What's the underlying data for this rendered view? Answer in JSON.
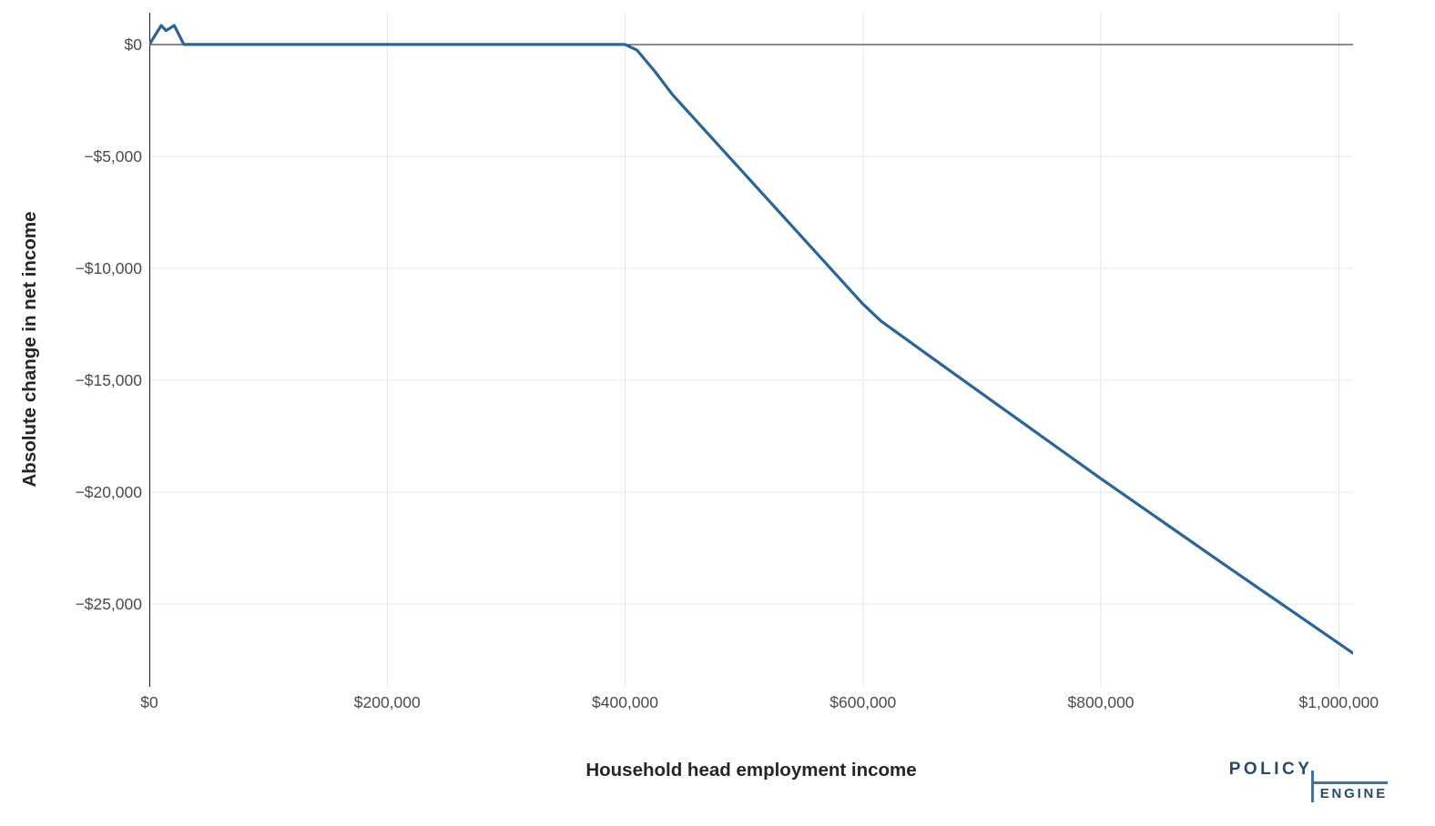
{
  "chart_data": {
    "type": "line",
    "title": "",
    "xlabel": "Household head employment income",
    "ylabel": "Absolute change in net income",
    "xlim": [
      0,
      1012000
    ],
    "ylim": [
      -28700,
      1420
    ],
    "grid": true,
    "legend_position": "none",
    "zero_lines": {
      "horizontal": true,
      "vertical": true
    },
    "x_ticks": [
      {
        "value": 0,
        "label": "$0"
      },
      {
        "value": 200000,
        "label": "$200,000"
      },
      {
        "value": 400000,
        "label": "$400,000"
      },
      {
        "value": 600000,
        "label": "$600,000"
      },
      {
        "value": 800000,
        "label": "$800,000"
      },
      {
        "value": 1000000,
        "label": "$1,000,000"
      }
    ],
    "y_ticks": [
      {
        "value": 0,
        "label": "$0"
      },
      {
        "value": -5000,
        "label": "−$5,000"
      },
      {
        "value": -10000,
        "label": "−$10,000"
      },
      {
        "value": -15000,
        "label": "−$15,000"
      },
      {
        "value": -20000,
        "label": "−$20,000"
      },
      {
        "value": -25000,
        "label": "−$25,000"
      }
    ],
    "series": [
      {
        "name": "Absolute change in net income",
        "color": "#2C6496",
        "points": [
          [
            0,
            0
          ],
          [
            10000,
            850
          ],
          [
            14000,
            620
          ],
          [
            21000,
            850
          ],
          [
            29000,
            0
          ],
          [
            400000,
            0
          ],
          [
            410000,
            -250
          ],
          [
            425000,
            -1200
          ],
          [
            440000,
            -2250
          ],
          [
            600000,
            -11600
          ],
          [
            615000,
            -12350
          ],
          [
            645000,
            -13500
          ],
          [
            700000,
            -15600
          ],
          [
            800000,
            -19400
          ],
          [
            900000,
            -23100
          ],
          [
            1012000,
            -27200
          ]
        ]
      }
    ]
  },
  "branding": {
    "policy": "POLICY",
    "engine": "ENGINE"
  },
  "colors": {
    "line": "#2C6496",
    "grid": "#e7e7e7",
    "zero_line": "#1a1a1a",
    "tick_text": "#4a4a4a",
    "axis_title_text": "#262626",
    "logo_text": "#2C4A64",
    "logo_rule": "#3a77a8",
    "background": "#ffffff"
  }
}
